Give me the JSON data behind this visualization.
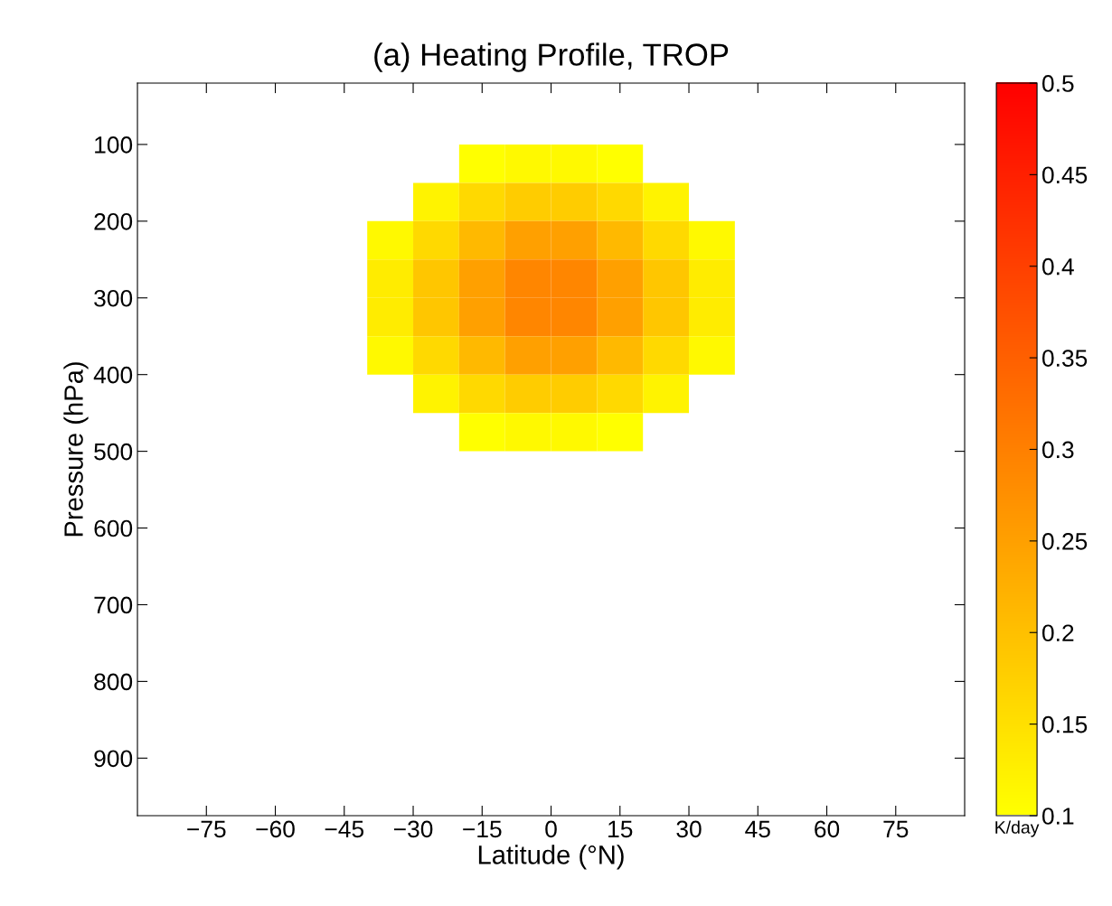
{
  "chart_data": {
    "type": "heatmap",
    "title": "(a) Heating Profile, TROP",
    "xlabel": "Latitude (°N)",
    "ylabel": "Pressure (hPa)",
    "clabel": "K/day",
    "x": [
      -35,
      -25,
      -15,
      -5,
      5,
      15,
      25,
      35
    ],
    "y": [
      125,
      175,
      225,
      275,
      325,
      375,
      425,
      475
    ],
    "cells": [
      [
        null,
        null,
        0.1,
        0.11,
        0.11,
        0.1,
        null,
        null
      ],
      [
        null,
        0.12,
        0.16,
        0.18,
        0.18,
        0.16,
        0.12,
        null
      ],
      [
        0.11,
        0.16,
        0.21,
        0.25,
        0.25,
        0.21,
        0.16,
        0.11
      ],
      [
        0.13,
        0.19,
        0.25,
        0.29,
        0.29,
        0.25,
        0.19,
        0.13
      ],
      [
        0.13,
        0.19,
        0.25,
        0.29,
        0.29,
        0.25,
        0.19,
        0.13
      ],
      [
        0.11,
        0.16,
        0.21,
        0.25,
        0.25,
        0.21,
        0.16,
        0.11
      ],
      [
        null,
        0.12,
        0.16,
        0.18,
        0.18,
        0.16,
        0.12,
        null
      ],
      [
        null,
        null,
        0.1,
        0.11,
        0.11,
        0.1,
        null,
        null
      ]
    ],
    "xlim": [
      -90,
      90
    ],
    "xticks": [
      -75,
      -60,
      -45,
      -30,
      -15,
      0,
      15,
      30,
      45,
      60,
      75
    ],
    "ylim": [
      975,
      20
    ],
    "yticks": [
      100,
      200,
      300,
      400,
      500,
      600,
      700,
      800,
      900
    ],
    "clim": [
      0.1,
      0.5
    ],
    "cticks": [
      0.1,
      0.15,
      0.2,
      0.25,
      0.3,
      0.35,
      0.4,
      0.45,
      0.5
    ],
    "grid": false
  }
}
